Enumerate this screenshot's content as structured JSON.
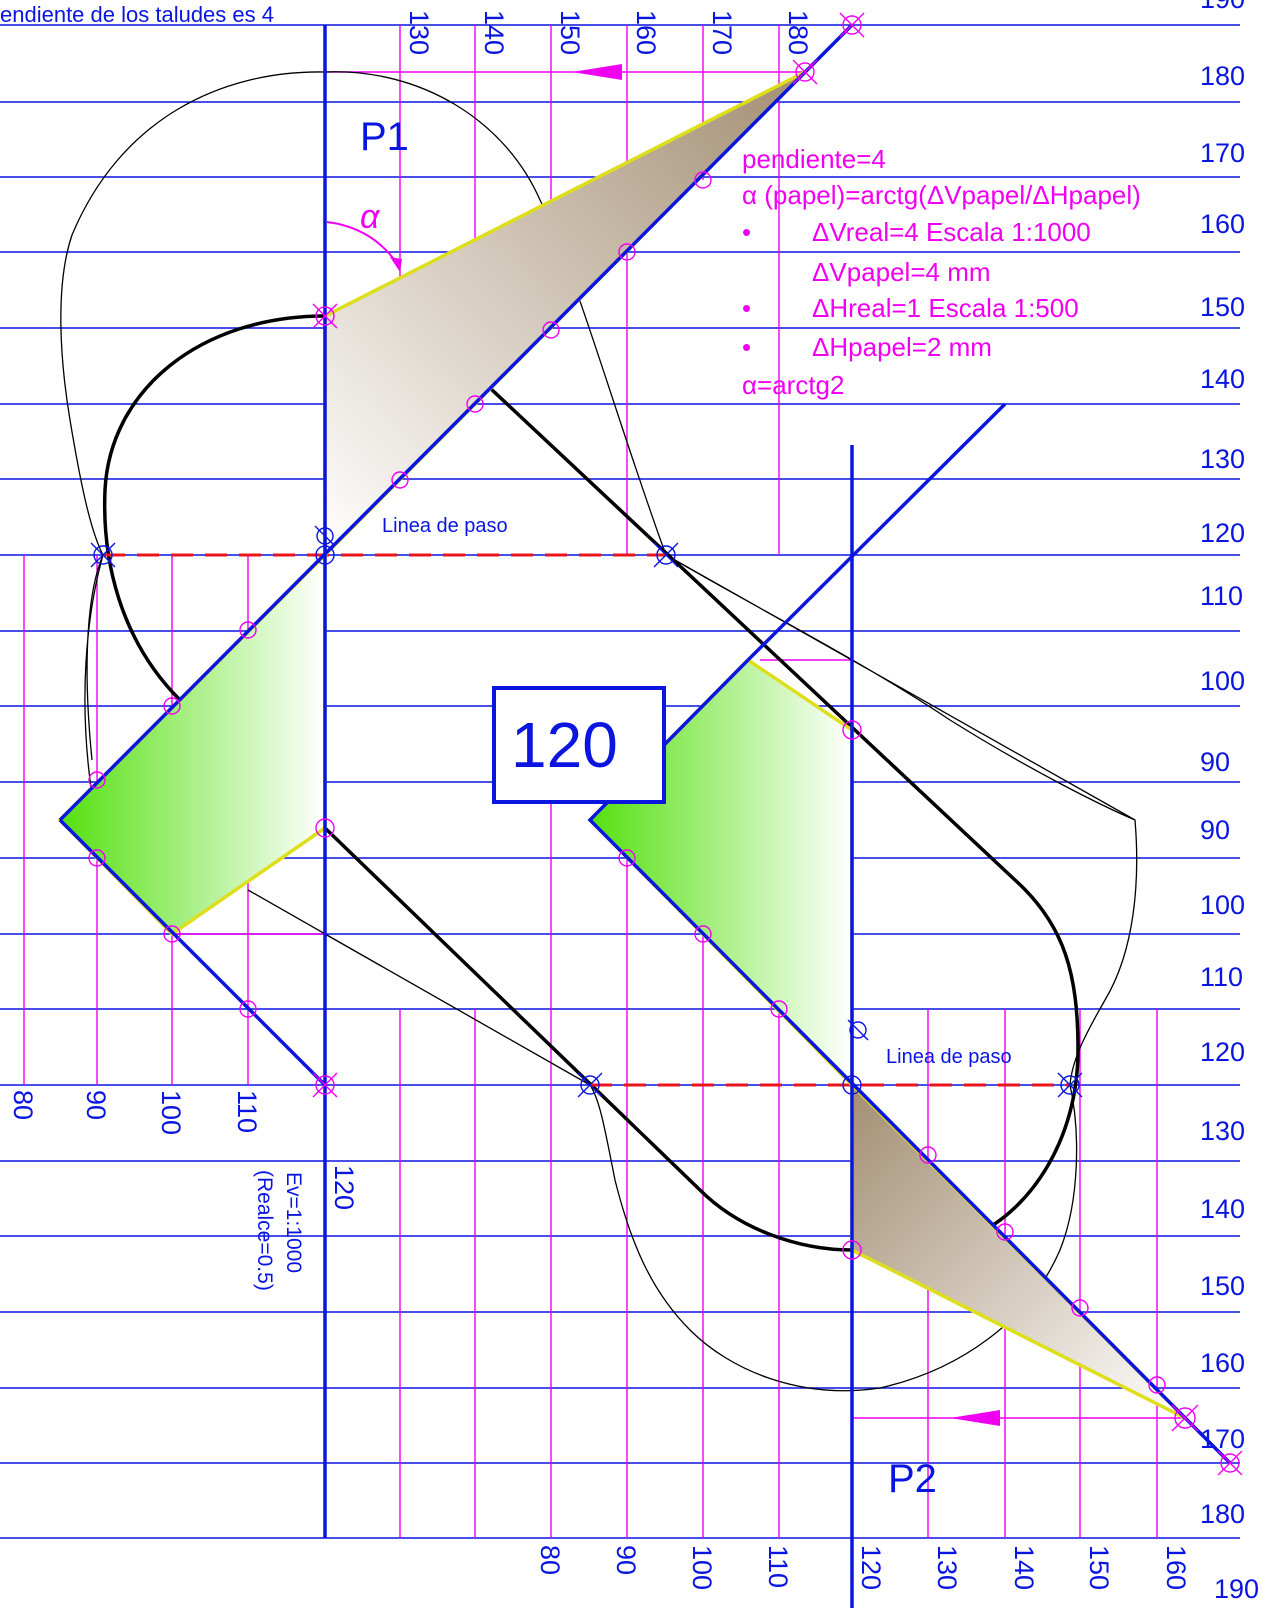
{
  "header": {
    "caption": "endiente de los taludes es 4"
  },
  "right_scale_labels": [
    "190",
    "180",
    "170",
    "160",
    "150",
    "140",
    "130",
    "120",
    "110",
    "100",
    "90",
    "90",
    "100",
    "110",
    "120",
    "130",
    "140",
    "150",
    "160",
    "170",
    "180"
  ],
  "top_scale_labels": [
    "130",
    "140",
    "150",
    "160",
    "170",
    "180"
  ],
  "left_scale_labels": [
    "80",
    "90",
    "100",
    "110",
    "120"
  ],
  "bottom_scale_labels": [
    "80",
    "90",
    "100",
    "110",
    "120",
    "130",
    "140",
    "150",
    "160",
    "190"
  ],
  "plan_labels": {
    "p1": "P1",
    "p2": "P2",
    "center_level": "120",
    "pass_line": "Linea de paso"
  },
  "scale_note": {
    "line1": "Ev=1:1000",
    "line2": "(Realce=0.5)"
  },
  "annotations": {
    "alpha": "α",
    "slope": "pendiente=4",
    "alpha_formula": "α (papel)=arctg(ΔVpapel/ΔHpapel)",
    "bullet": "•",
    "dv_real": "ΔVreal=4    Escala 1:1000",
    "dv_paper": "ΔVpapel=4 mm",
    "dh_real": "ΔHreal=1    Escala 1:500",
    "dh_paper": "ΔHpapel=2 mm",
    "alpha_result": "α=arctg2"
  },
  "colors": {
    "contour_blue": "#0b15e0",
    "construction_magenta": "#f000f0",
    "pass_line_red": "#e8141e",
    "outline_yellow": "#dede1c",
    "fill_green": "#55e010",
    "fill_brown": "#a38e72"
  }
}
